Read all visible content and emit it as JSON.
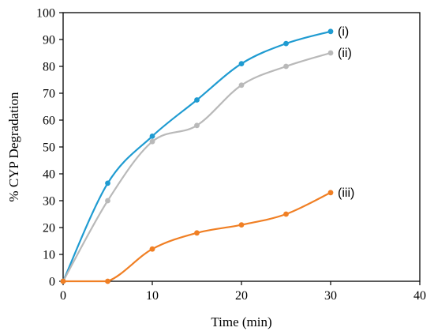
{
  "chart_data": {
    "type": "line",
    "xlabel": "Time (min)",
    "ylabel": "% CYP Degradation",
    "xlim": [
      0,
      40
    ],
    "ylim": [
      0,
      100
    ],
    "xticks": [
      0,
      10,
      20,
      30,
      40
    ],
    "yticks": [
      0,
      10,
      20,
      30,
      40,
      50,
      60,
      70,
      80,
      90,
      100
    ],
    "grid": false,
    "series": [
      {
        "name": "(i)",
        "color": "#1f9bd1",
        "x": [
          0,
          5,
          10,
          15,
          20,
          25,
          30
        ],
        "y": [
          0,
          36.5,
          54,
          67.5,
          81,
          88.5,
          93
        ]
      },
      {
        "name": "(ii)",
        "color": "#b9b9b9",
        "x": [
          0,
          5,
          10,
          15,
          20,
          25,
          30
        ],
        "y": [
          0,
          30,
          52,
          58,
          73,
          80,
          85
        ]
      },
      {
        "name": "(iii)",
        "color": "#f07f24",
        "x": [
          0,
          5,
          10,
          15,
          20,
          25,
          30
        ],
        "y": [
          0,
          0,
          12,
          18,
          21,
          25,
          33
        ]
      }
    ]
  }
}
